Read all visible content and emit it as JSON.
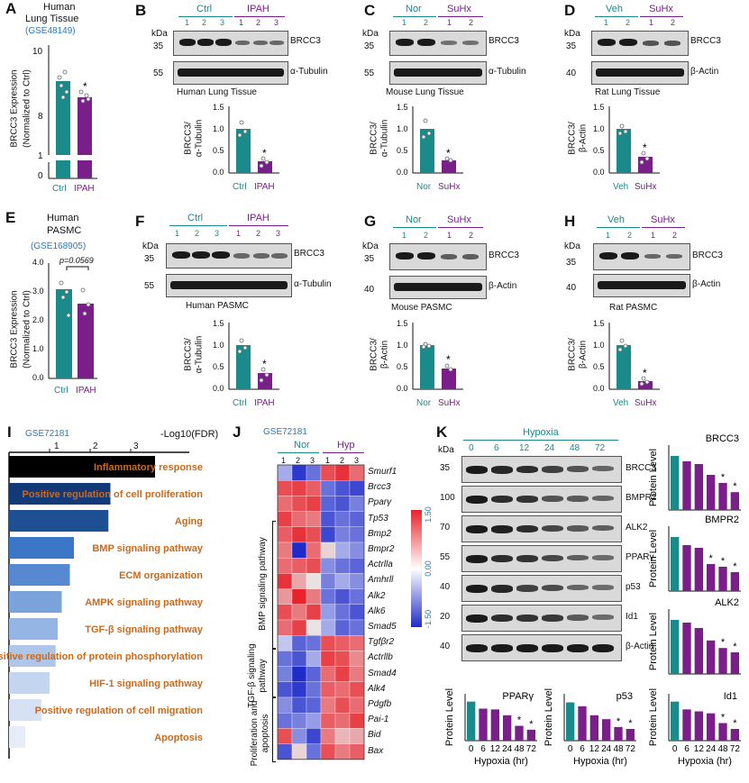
{
  "panelA": {
    "label": "A",
    "title1": "Human",
    "title2": "Lung Tissue",
    "dataset": "(GSE48149)",
    "ylabel1": "BRCC3 Expression",
    "ylabel2": "(Normalized to Ctrl)",
    "yticks": [
      "10",
      "8",
      "1",
      "0"
    ],
    "groups": [
      "Ctrl",
      "IPAH"
    ],
    "values": [
      9.3,
      8.9
    ],
    "star": "*"
  },
  "panelB": {
    "label": "B",
    "groups": [
      "Ctrl",
      "IPAH"
    ],
    "lanes": [
      "1",
      "2",
      "3",
      "1",
      "2",
      "3"
    ],
    "kda": "kDa",
    "mw1": "35",
    "mw2": "55",
    "prot1": "BRCC3",
    "prot2": "α-Tubulin",
    "tissue": "Human Lung Tissue",
    "ylabel1": "BRCC3/",
    "ylabel2": "α-Tubulin",
    "yticks": [
      "1.5",
      "1.0",
      "0.5",
      "0.0"
    ],
    "bars": [
      "Ctrl",
      "IPAH"
    ],
    "values": [
      1.0,
      0.27
    ],
    "star": "*"
  },
  "panelC": {
    "label": "C",
    "groups": [
      "Nor",
      "SuHx"
    ],
    "lanes": [
      "1",
      "2",
      "1",
      "2"
    ],
    "kda": "kDa",
    "mw1": "35",
    "mw2": "55",
    "prot1": "BRCC3",
    "prot2": "α-Tubulin",
    "tissue": "Mouse Lung Tissue",
    "ylabel1": "BRCC3/",
    "ylabel2": "α-Tubulin",
    "yticks": [
      "1.5",
      "1.0",
      "0.5",
      "0.0"
    ],
    "bars": [
      "Nor",
      "SuHx"
    ],
    "values": [
      1.0,
      0.28
    ],
    "star": "*"
  },
  "panelD": {
    "label": "D",
    "groups": [
      "Veh",
      "SuHx"
    ],
    "lanes": [
      "1",
      "2",
      "1",
      "2"
    ],
    "kda": "kDa",
    "mw1": "35",
    "mw2": "40",
    "prot1": "BRCC3",
    "prot2": "β-Actin",
    "tissue": "Rat Lung Tissue",
    "ylabel1": "BRCC3/",
    "ylabel2": "β-Actin",
    "yticks": [
      "1.5",
      "1.0",
      "0.5",
      "0.0"
    ],
    "bars": [
      "Veh",
      "SuHx"
    ],
    "values": [
      1.0,
      0.36
    ],
    "star": "*"
  },
  "panelE": {
    "label": "E",
    "title1": "Human",
    "title2": "PASMC",
    "dataset": "(GSE168905)",
    "pval": "p=0.0569",
    "ylabel1": "BRCC3 Expression",
    "ylabel2": "(Normalized to Ctrl)",
    "yticks": [
      "4.0",
      "3.0",
      "2.0",
      "1.0",
      "0.0"
    ],
    "groups": [
      "Ctrl",
      "IPAH"
    ],
    "values": [
      3.1,
      2.6
    ]
  },
  "panelF": {
    "label": "F",
    "groups": [
      "Ctrl",
      "IPAH"
    ],
    "lanes": [
      "1",
      "2",
      "3",
      "1",
      "2",
      "3"
    ],
    "kda": "kDa",
    "mw1": "35",
    "mw2": "55",
    "prot1": "BRCC3",
    "prot2": "α-Tubulin",
    "tissue": "Human PASMC",
    "ylabel1": "BRCC3/",
    "ylabel2": "α-Tubulin",
    "yticks": [
      "1.5",
      "1.0",
      "0.5",
      "0.0"
    ],
    "bars": [
      "Ctrl",
      "IPAH"
    ],
    "values": [
      1.0,
      0.37
    ],
    "star": "*"
  },
  "panelG": {
    "label": "G",
    "groups": [
      "Nor",
      "SuHx"
    ],
    "lanes": [
      "1",
      "2",
      "1",
      "2"
    ],
    "kda": "kDa",
    "mw1": "35",
    "mw2": "40",
    "prot1": "BRCC3",
    "prot2": "β-Actin",
    "tissue": "Mouse PASMC",
    "ylabel1": "BRCC3/",
    "ylabel2": "β-Actin",
    "yticks": [
      "1.5",
      "1.0",
      "0.5",
      "0.0"
    ],
    "bars": [
      "Nor",
      "SuHx"
    ],
    "values": [
      1.0,
      0.47
    ],
    "star": "*"
  },
  "panelH": {
    "label": "H",
    "groups": [
      "Veh",
      "SuHx"
    ],
    "lanes": [
      "1",
      "2",
      "1",
      "2"
    ],
    "kda": "kDa",
    "mw1": "35",
    "mw2": "40",
    "prot1": "BRCC3",
    "prot2": "β-Actin",
    "tissue": "Rat PASMC",
    "ylabel1": "BRCC3/",
    "ylabel2": "β-Actin",
    "yticks": [
      "1.5",
      "1.0",
      "0.5",
      "0.0"
    ],
    "bars": [
      "Veh",
      "SuHx"
    ],
    "values": [
      1.0,
      0.18
    ],
    "star": "*"
  },
  "panelI": {
    "label": "I",
    "dataset": "GSE72181",
    "axis_title": "-Log10(FDR)",
    "ticks": [
      "1",
      "2",
      "3"
    ],
    "pathways": [
      {
        "name": "Inflammatory response",
        "value": 3.6,
        "color": "#000000"
      },
      {
        "name": "Positive regulation of cell proliferation",
        "value": 2.5,
        "color": "#123a78"
      },
      {
        "name": "Aging",
        "value": 2.45,
        "color": "#1e4f92"
      },
      {
        "name": "BMP signaling pathway",
        "value": 1.6,
        "color": "#3c76c6"
      },
      {
        "name": "ECM organization",
        "value": 1.5,
        "color": "#5689d2"
      },
      {
        "name": "AMPK signaling pathway",
        "value": 1.3,
        "color": "#7aa3dc"
      },
      {
        "name": "TGF-β signaling pathway",
        "value": 1.2,
        "color": "#95b6e4"
      },
      {
        "name": "Positive regulation of protein phosphorylation",
        "value": 1.15,
        "color": "#adc6ea"
      },
      {
        "name": "HIF-1 signaling pathway",
        "value": 1.0,
        "color": "#c4d6ef"
      },
      {
        "name": "Positive regulation of cell migration",
        "value": 0.8,
        "color": "#d6e2f4"
      },
      {
        "name": "Apoptosis",
        "value": 0.4,
        "color": "#e6edf8"
      }
    ]
  },
  "panelJ": {
    "label": "J",
    "dataset": "GSE72181",
    "groups": [
      "Nor",
      "Hyp"
    ],
    "cols": [
      "1",
      "2",
      "3",
      "1",
      "2",
      "3"
    ],
    "genes": [
      "Smurf1",
      "Brcc3",
      "Pparγ",
      "Tp53",
      "Bmp2",
      "Bmpr2",
      "Actrlla",
      "Amhrll",
      "Alk2",
      "Alk6",
      "Smad5",
      "Tgfβr2",
      "Actrllb",
      "Smad4",
      "Alk4",
      "Pdgfb",
      "Pai-1",
      "Bid",
      "Bax"
    ],
    "groups_side": [
      "BMP signaling pathway",
      "TGF-β signaling pathway",
      "Proliferation and apoptosis"
    ],
    "scale": [
      "1.50",
      "0.00",
      "-1.50"
    ],
    "matrix": [
      [
        -0.6,
        -1.4,
        -1.0,
        1.2,
        1.4,
        1.0
      ],
      [
        1.2,
        1.3,
        1.1,
        -1.0,
        -1.2,
        -1.3
      ],
      [
        1.0,
        1.2,
        1.3,
        -1.1,
        -1.2,
        -0.9
      ],
      [
        1.3,
        1.0,
        0.9,
        -1.2,
        -1.0,
        -1.1
      ],
      [
        1.1,
        1.4,
        1.2,
        -1.3,
        -0.9,
        -1.0
      ],
      [
        0.9,
        -1.5,
        1.0,
        0.3,
        -0.6,
        -0.8
      ],
      [
        1.0,
        1.1,
        1.2,
        -0.8,
        -1.0,
        -1.1
      ],
      [
        1.4,
        0.6,
        0.2,
        -0.9,
        -0.6,
        -0.8
      ],
      [
        0.7,
        1.5,
        0.9,
        -1.0,
        -1.2,
        -1.0
      ],
      [
        1.2,
        0.9,
        1.3,
        -0.7,
        -1.0,
        -1.2
      ],
      [
        1.0,
        1.3,
        0.2,
        -0.6,
        -1.1,
        -1.0
      ],
      [
        -0.4,
        -1.1,
        -1.0,
        1.2,
        1.1,
        1.0
      ],
      [
        -1.0,
        -1.2,
        -0.6,
        1.3,
        1.2,
        0.8
      ],
      [
        -0.9,
        -1.5,
        -1.1,
        1.0,
        1.3,
        0.9
      ],
      [
        -1.2,
        -1.4,
        -1.0,
        1.1,
        1.0,
        1.2
      ],
      [
        -0.8,
        -1.2,
        -1.1,
        0.9,
        1.2,
        1.0
      ],
      [
        -1.0,
        -0.9,
        -0.7,
        1.1,
        1.0,
        1.3
      ],
      [
        1.2,
        -0.8,
        -1.3,
        0.9,
        0.5,
        0.6
      ],
      [
        -1.2,
        0.3,
        -1.0,
        1.2,
        0.9,
        1.1
      ]
    ]
  },
  "panelK": {
    "label": "K",
    "hypoxia": "Hypoxia",
    "times": [
      "0",
      "6",
      "12",
      "24",
      "48",
      "72"
    ],
    "kda": "kDa",
    "blots": [
      {
        "mw": "35",
        "prot": "BRCC3"
      },
      {
        "mw": "100",
        "prot": "BMPR2"
      },
      {
        "mw": "70",
        "prot": "ALK2"
      },
      {
        "mw": "55",
        "prot": "PPARγ"
      },
      {
        "mw": "40",
        "prot": "p53"
      },
      {
        "mw": "20",
        "prot": "Id1"
      },
      {
        "mw": "40",
        "prot": "β-Actin"
      }
    ],
    "ylabel": "Protein Level",
    "xlabel": "Hypoxia (hr)",
    "yticks": [
      "1.2",
      "0.9",
      "0.6",
      "0.3",
      "0.0"
    ],
    "charts": [
      {
        "title": "BRCC3",
        "values": [
          1.0,
          0.9,
          0.85,
          0.65,
          0.5,
          0.33
        ],
        "stars": [
          false,
          false,
          false,
          false,
          true,
          true
        ]
      },
      {
        "title": "BMPR2",
        "values": [
          1.0,
          0.85,
          0.8,
          0.5,
          0.45,
          0.35
        ],
        "stars": [
          false,
          false,
          false,
          true,
          true,
          true
        ]
      },
      {
        "title": "ALK2",
        "values": [
          1.0,
          0.95,
          0.85,
          0.62,
          0.48,
          0.4
        ],
        "stars": [
          false,
          false,
          false,
          false,
          true,
          true
        ]
      },
      {
        "title": "PPARγ",
        "values": [
          1.0,
          0.82,
          0.8,
          0.65,
          0.38,
          0.28
        ],
        "stars": [
          false,
          false,
          false,
          false,
          true,
          true
        ]
      },
      {
        "title": "p53",
        "values": [
          0.98,
          0.88,
          0.65,
          0.55,
          0.35,
          0.3
        ],
        "stars": [
          false,
          false,
          false,
          false,
          true,
          true
        ]
      },
      {
        "title": "Id1",
        "values": [
          1.0,
          0.8,
          0.75,
          0.7,
          0.45,
          0.3
        ],
        "stars": [
          false,
          false,
          false,
          false,
          true,
          true
        ]
      }
    ]
  }
}
